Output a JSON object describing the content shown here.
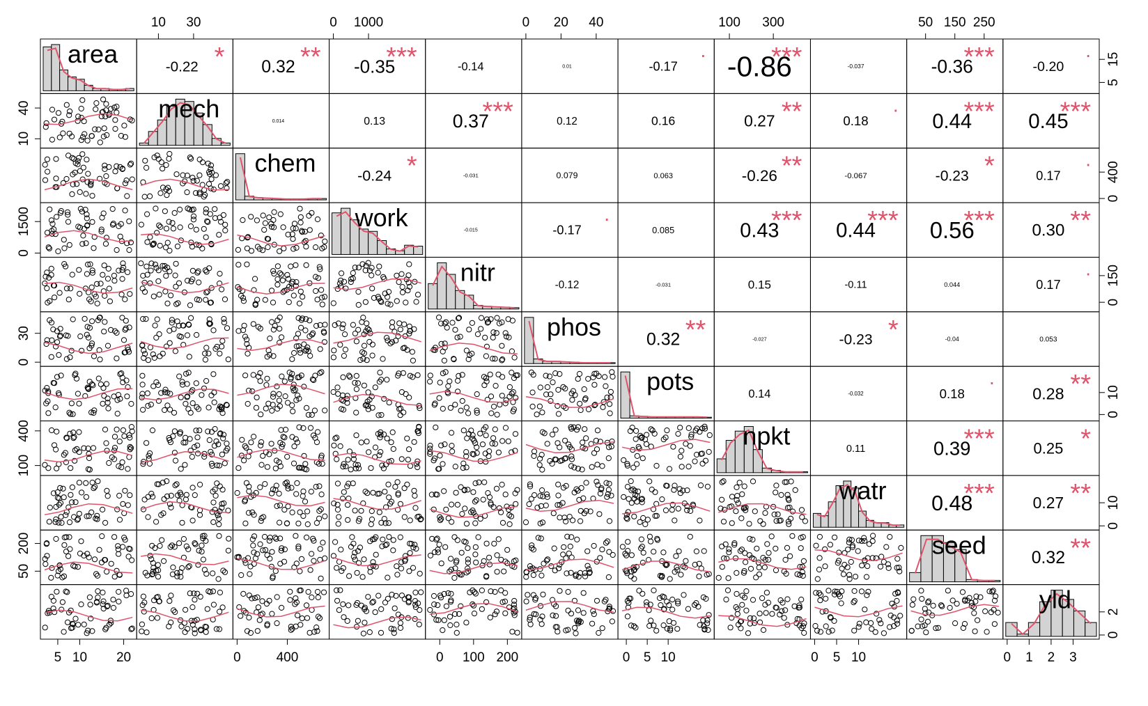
{
  "chart_data": {
    "type": "scatter",
    "chart_kind": "correlation-matrix",
    "variables": [
      "area",
      "mech",
      "chem",
      "work",
      "nitr",
      "phos",
      "pots",
      "npkt",
      "watr",
      "seed",
      "yld"
    ],
    "correlations": [
      [
        "-0.22",
        "*"
      ],
      [
        "0.32",
        "**"
      ],
      [
        "-0.35",
        "***"
      ],
      [
        "-0.14",
        ""
      ],
      [
        "0.01",
        ""
      ],
      [
        "-0.17",
        "."
      ],
      [
        "-0.86",
        "***"
      ],
      [
        "-0.037",
        ""
      ],
      [
        "-0.36",
        "***"
      ],
      [
        "-0.20",
        "."
      ],
      [
        "0.014",
        ""
      ],
      [
        "0.13",
        ""
      ],
      [
        "0.37",
        "***"
      ],
      [
        "0.12",
        ""
      ],
      [
        "0.16",
        ""
      ],
      [
        "0.27",
        "**"
      ],
      [
        "0.18",
        "."
      ],
      [
        "0.44",
        "***"
      ],
      [
        "0.45",
        "***"
      ],
      [
        "-0.24",
        "*"
      ],
      [
        "-0.031",
        ""
      ],
      [
        "0.079",
        ""
      ],
      [
        "0.063",
        ""
      ],
      [
        "-0.26",
        "**"
      ],
      [
        "-0.067",
        ""
      ],
      [
        "-0.23",
        "*"
      ],
      [
        "0.17",
        "."
      ],
      [
        "-0.015",
        ""
      ],
      [
        "-0.17",
        "."
      ],
      [
        "0.085",
        ""
      ],
      [
        "0.43",
        "***"
      ],
      [
        "0.44",
        "***"
      ],
      [
        "0.56",
        "***"
      ],
      [
        "0.30",
        "**"
      ],
      [
        "-0.12",
        ""
      ],
      [
        "-0.031",
        ""
      ],
      [
        "0.15",
        ""
      ],
      [
        "-0.11",
        ""
      ],
      [
        "0.044",
        ""
      ],
      [
        "0.17",
        "."
      ],
      [
        "0.32",
        "**"
      ],
      [
        "-0.027",
        ""
      ],
      [
        "-0.23",
        "*"
      ],
      [
        "-0.04",
        ""
      ],
      [
        "0.053",
        ""
      ],
      [
        "0.14",
        ""
      ],
      [
        "-0.032",
        ""
      ],
      [
        "0.18",
        "."
      ],
      [
        "0.28",
        "**"
      ],
      [
        "0.11",
        ""
      ],
      [
        "0.39",
        "***"
      ],
      [
        "0.25",
        "*"
      ],
      [
        "0.48",
        "***"
      ],
      [
        "0.27",
        "**"
      ],
      [
        "0.32",
        "**"
      ]
    ],
    "axis_ticks": {
      "top": [
        {
          "var_index": 1,
          "ticks": [
            "10",
            "30"
          ],
          "range": [
            0,
            50
          ]
        },
        {
          "var_index": 3,
          "ticks": [
            "0",
            "1000"
          ],
          "range": [
            0,
            2500
          ]
        },
        {
          "var_index": 5,
          "ticks": [
            "0",
            "20",
            "40"
          ],
          "range": [
            0,
            50
          ]
        },
        {
          "var_index": 7,
          "ticks": [
            "100",
            "300"
          ],
          "range": [
            50,
            450
          ]
        },
        {
          "var_index": 9,
          "ticks": [
            "50",
            "150",
            "250"
          ],
          "range": [
            0,
            300
          ]
        }
      ],
      "bottom": [
        {
          "var_index": 0,
          "ticks": [
            "5",
            "10",
            "20"
          ],
          "range": [
            2,
            22
          ]
        },
        {
          "var_index": 2,
          "ticks": [
            "0",
            "400"
          ],
          "range": [
            0,
            700
          ]
        },
        {
          "var_index": 4,
          "ticks": [
            "0",
            "100",
            "200"
          ],
          "range": [
            -30,
            230
          ]
        },
        {
          "var_index": 6,
          "ticks": [
            "0",
            "5",
            "10"
          ],
          "range": [
            -1,
            20
          ]
        },
        {
          "var_index": 8,
          "ticks": [
            "0",
            "5",
            "10"
          ],
          "range": [
            0,
            20
          ]
        },
        {
          "var_index": 10,
          "ticks": [
            "0",
            "1",
            "2",
            "3"
          ],
          "range": [
            0,
            4
          ]
        }
      ],
      "left": [
        {
          "var_index": 1,
          "ticks": [
            "10",
            "40"
          ],
          "range": [
            5,
            50
          ]
        },
        {
          "var_index": 3,
          "ticks": [
            "0",
            "1500"
          ],
          "range": [
            0,
            2200
          ]
        },
        {
          "var_index": 5,
          "ticks": [
            "0",
            "30"
          ],
          "range": [
            0,
            48
          ]
        },
        {
          "var_index": 7,
          "ticks": [
            "100",
            "400"
          ],
          "range": [
            50,
            450
          ]
        },
        {
          "var_index": 9,
          "ticks": [
            "50",
            "200"
          ],
          "range": [
            0,
            250
          ]
        }
      ],
      "right": [
        {
          "var_index": 0,
          "ticks": [
            "5",
            "15"
          ],
          "range": [
            2,
            22
          ]
        },
        {
          "var_index": 2,
          "ticks": [
            "0",
            "400"
          ],
          "range": [
            0,
            700
          ]
        },
        {
          "var_index": 4,
          "ticks": [
            "0",
            "150"
          ],
          "range": [
            -30,
            230
          ]
        },
        {
          "var_index": 6,
          "ticks": [
            "0",
            "10"
          ],
          "range": [
            -1,
            20
          ]
        },
        {
          "var_index": 8,
          "ticks": [
            "0",
            "10"
          ],
          "range": [
            0,
            20
          ]
        },
        {
          "var_index": 10,
          "ticks": [
            "0",
            "2"
          ],
          "range": [
            0,
            4
          ]
        }
      ]
    },
    "histograms": [
      [
        0.95,
        1.0,
        0.45,
        0.3,
        0.25,
        0.12,
        0.05,
        0.05,
        0.03,
        0.03,
        0.05
      ],
      [
        0.05,
        0.3,
        0.55,
        0.85,
        1.0,
        0.95,
        0.7,
        0.45,
        0.15,
        0.05
      ],
      [
        1.0,
        0.08,
        0.05,
        0.04,
        0.03,
        0.02,
        0.02,
        0.02,
        0.03,
        0.03
      ],
      [
        0.9,
        1.0,
        0.75,
        0.55,
        0.5,
        0.3,
        0.12,
        0.08,
        0.2,
        0.18
      ],
      [
        0.55,
        1.0,
        0.75,
        0.4,
        0.3,
        0.08,
        0.06,
        0.05,
        0.04,
        0.03
      ],
      [
        1.0,
        0.1,
        0.05,
        0.05,
        0.04,
        0.03,
        0.02,
        0.02,
        0.02,
        0.02
      ],
      [
        1.0,
        0.05,
        0.04,
        0.03,
        0.03,
        0.03,
        0.03,
        0.03,
        0.03,
        0.02
      ],
      [
        0.3,
        0.7,
        0.9,
        1.0,
        0.5,
        0.1,
        0.05,
        0.02,
        0.02,
        0.02
      ],
      [
        0.3,
        0.25,
        0.55,
        0.9,
        1.0,
        0.85,
        0.35,
        0.15,
        0.1,
        0.1,
        0.05,
        0.05
      ],
      [
        0.2,
        1.0,
        1.0,
        0.85,
        0.7,
        0.05,
        0.03,
        0.03
      ],
      [
        0.3,
        0.05,
        0.3,
        0.75,
        1.0,
        0.8,
        0.55,
        0.3
      ]
    ],
    "colors": {
      "smoother": "#df536b",
      "stars": "#df536b",
      "bars": "#d3d3d3",
      "points": "#000000"
    }
  }
}
